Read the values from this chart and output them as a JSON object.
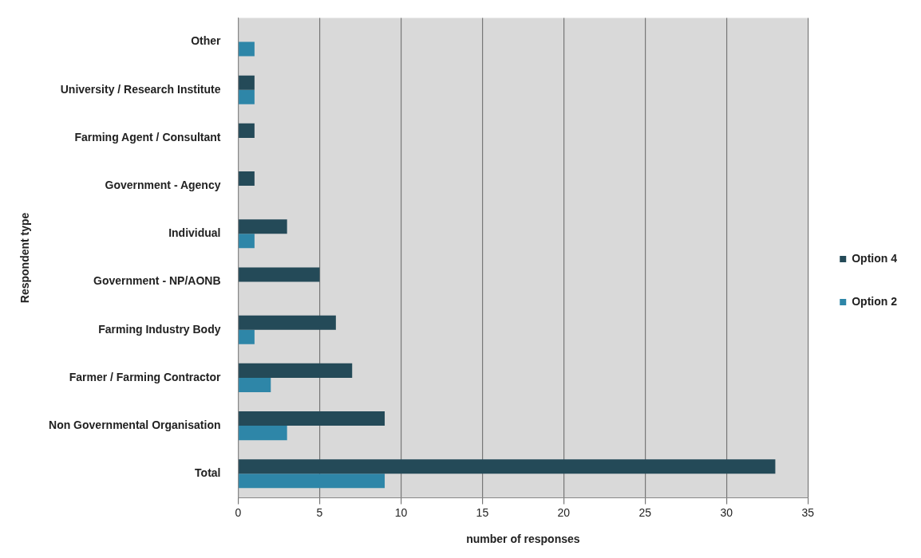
{
  "chart_data": {
    "type": "bar",
    "orientation": "horizontal",
    "xlabel": "number of responses",
    "ylabel": "Respondent type",
    "categories": [
      "Other",
      "University / Research Institute",
      "Farming Agent / Consultant",
      "Government - Agency",
      "Individual",
      "Government - NP/AONB",
      "Farming Industry Body",
      "Farmer / Farming Contractor",
      "Non Governmental Organisation",
      "Total"
    ],
    "series": [
      {
        "name": "Option 4",
        "color": "#244a58",
        "values": [
          0,
          1,
          1,
          1,
          3,
          5,
          6,
          7,
          9,
          33
        ]
      },
      {
        "name": "Option 2",
        "color": "#2e86a8",
        "values": [
          1,
          1,
          0,
          0,
          1,
          0,
          1,
          2,
          3,
          9
        ]
      }
    ],
    "xlim": [
      0,
      35
    ],
    "xticks": [
      0,
      5,
      10,
      15,
      20,
      25,
      30,
      35
    ],
    "grid": "x",
    "legend": "right"
  }
}
